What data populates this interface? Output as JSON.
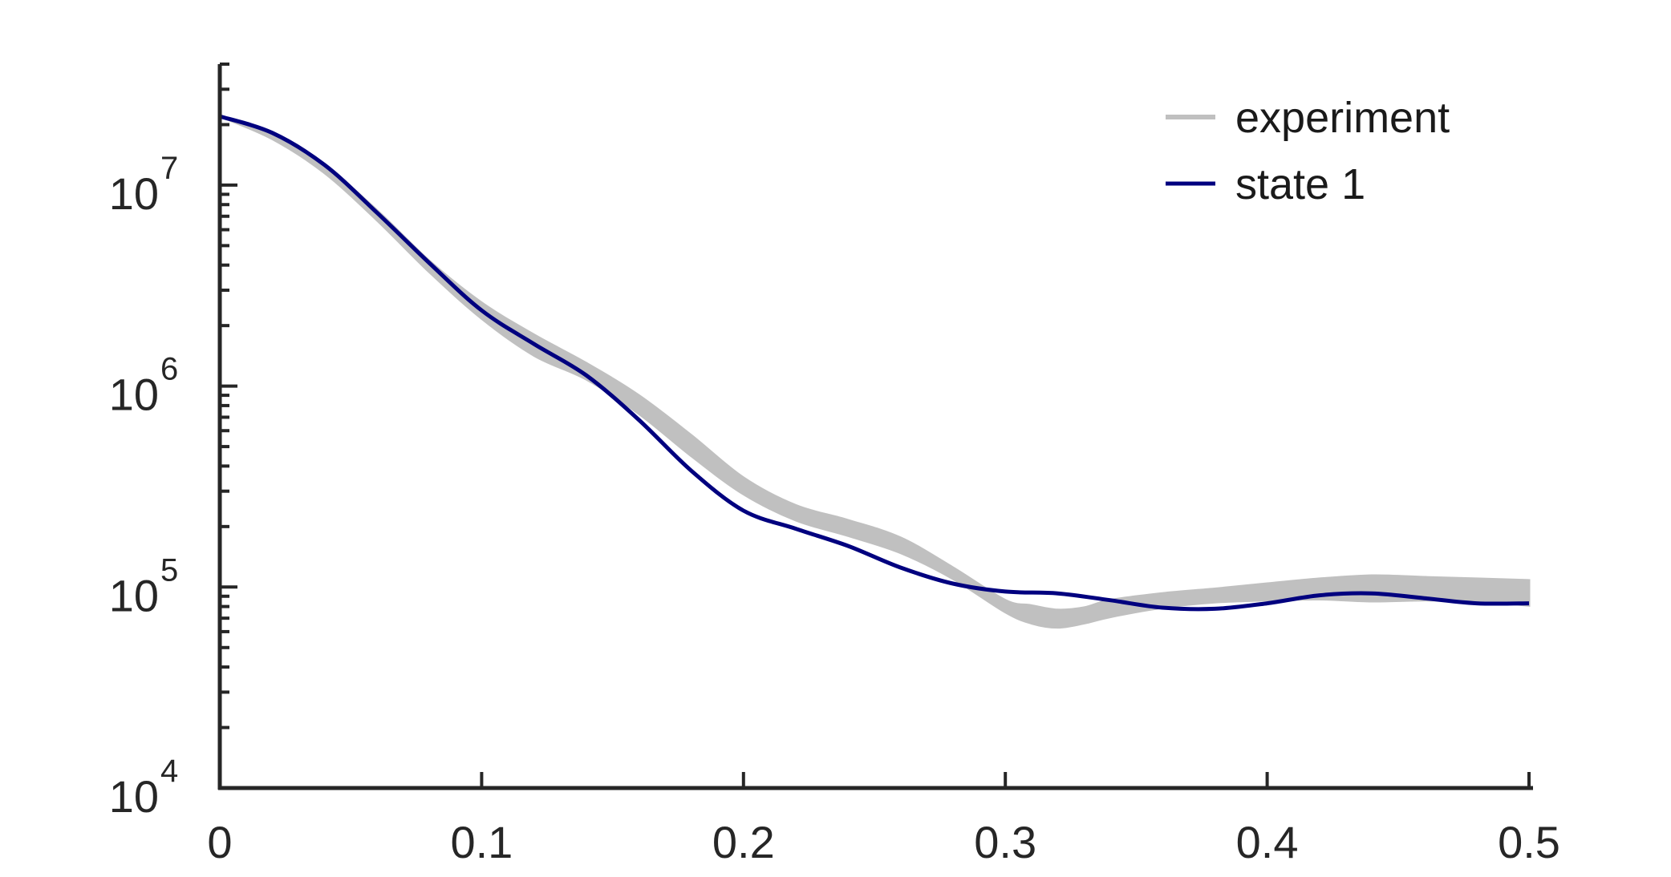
{
  "chart_data": {
    "type": "line",
    "title": "",
    "xlabel": "",
    "ylabel": "",
    "xlim": [
      0,
      0.5
    ],
    "ylim": [
      10000,
      40000000
    ],
    "yscale": "log",
    "grid": false,
    "legend_position": "top-right",
    "x_ticks": [
      "0",
      "0.1",
      "0.2",
      "0.3",
      "0.4",
      "0.5"
    ],
    "y_ticks": [
      {
        "base": "10",
        "exp": "4"
      },
      {
        "base": "10",
        "exp": "5"
      },
      {
        "base": "10",
        "exp": "6"
      },
      {
        "base": "10",
        "exp": "7"
      }
    ],
    "series": [
      {
        "name": "experiment",
        "style": "band",
        "color": "#c0c0c0",
        "x": [
          0,
          0.02,
          0.04,
          0.06,
          0.08,
          0.1,
          0.12,
          0.14,
          0.16,
          0.18,
          0.2,
          0.22,
          0.24,
          0.26,
          0.28,
          0.3,
          0.31,
          0.32,
          0.33,
          0.34,
          0.36,
          0.38,
          0.4,
          0.42,
          0.44,
          0.46,
          0.48,
          0.5
        ],
        "lower": [
          22000000,
          17000000,
          11500000,
          6700000,
          3700000,
          2170000,
          1420000,
          1080000,
          730000,
          450000,
          290000,
          215000,
          180000,
          148000,
          110000,
          75000,
          66000,
          63000,
          66000,
          71000,
          79000,
          84000,
          86000,
          87000,
          85000,
          86000,
          85000,
          81000
        ],
        "upper": [
          22000000,
          17800000,
          12500000,
          7500000,
          4200000,
          2600000,
          1800000,
          1300000,
          900000,
          570000,
          350000,
          255000,
          215000,
          176000,
          125000,
          86000,
          81000,
          77000,
          79000,
          86000,
          93000,
          98000,
          104000,
          110000,
          114000,
          112000,
          110000,
          108000
        ]
      },
      {
        "name": "state 1",
        "style": "line",
        "color": "#00007f",
        "x": [
          0,
          0.02,
          0.04,
          0.06,
          0.08,
          0.1,
          0.12,
          0.14,
          0.16,
          0.18,
          0.2,
          0.22,
          0.24,
          0.26,
          0.28,
          0.3,
          0.32,
          0.34,
          0.36,
          0.38,
          0.4,
          0.42,
          0.44,
          0.46,
          0.48,
          0.5
        ],
        "values": [
          22000000,
          18200000,
          12600000,
          7300000,
          4100000,
          2380000,
          1620000,
          1130000,
          680000,
          380000,
          240000,
          195000,
          160000,
          125000,
          104000,
          95000,
          93000,
          86000,
          79000,
          78000,
          83000,
          91000,
          93000,
          88000,
          83000,
          83000
        ]
      }
    ]
  }
}
